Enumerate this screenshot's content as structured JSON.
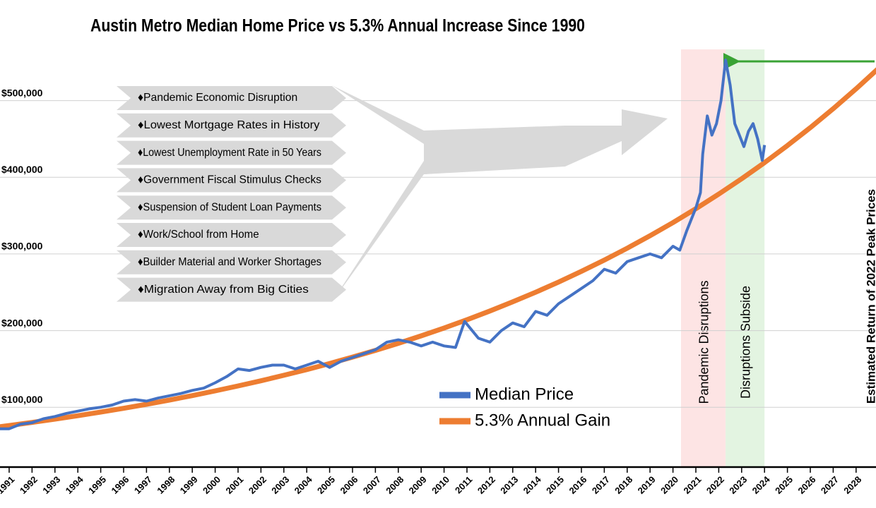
{
  "chart_data": {
    "type": "line",
    "title": "Austin Metro Median Home Price vs 5.3% Annual Increase Since 1990",
    "xlim": [
      1990.6,
      2028.87
    ],
    "xticks": [
      1991,
      1992,
      1993,
      1994,
      1995,
      1996,
      1997,
      1998,
      1999,
      2000,
      2001,
      2002,
      2003,
      2004,
      2005,
      2006,
      2007,
      2008,
      2009,
      2010,
      2011,
      2012,
      2013,
      2014,
      2015,
      2016,
      2017,
      2018,
      2019,
      2020,
      2021,
      2022,
      2023,
      2024,
      2025,
      2026,
      2027,
      2028
    ],
    "ylim": [
      22000,
      576000
    ],
    "yticks": [
      {
        "value": 100000,
        "label": "$100,000"
      },
      {
        "value": 200000,
        "label": "$200,000"
      },
      {
        "value": 300000,
        "label": "$300,000"
      },
      {
        "value": 400000,
        "label": "$400,000"
      },
      {
        "value": 500000,
        "label": "$500,000"
      }
    ],
    "grid": true,
    "series": [
      {
        "name": "Median Price",
        "color": "#4472c4",
        "x": [
          1990.6,
          1991,
          1991.5,
          1992,
          1992.5,
          1993,
          1993.5,
          1994,
          1994.5,
          1995,
          1995.5,
          1996,
          1996.5,
          1997,
          1997.5,
          1998,
          1998.5,
          1999,
          1999.5,
          2000,
          2000.5,
          2001,
          2001.5,
          2002,
          2002.5,
          2003,
          2003.5,
          2004,
          2004.5,
          2005,
          2005.5,
          2006,
          2006.5,
          2007,
          2007.5,
          2008,
          2008.5,
          2009,
          2009.5,
          2010,
          2010.5,
          2010.9,
          2011.5,
          2012,
          2012.5,
          2013,
          2013.5,
          2014,
          2014.5,
          2015,
          2015.5,
          2016,
          2016.5,
          2017,
          2017.5,
          2018,
          2018.5,
          2019,
          2019.5,
          2020,
          2020.3,
          2020.6,
          2021,
          2021.2,
          2021.3,
          2021.5,
          2021.7,
          2021.9,
          2022.1,
          2022.3,
          2022.5,
          2022.7,
          2022.9,
          2023.1,
          2023.3,
          2023.5,
          2023.7,
          2023.9,
          2024
        ],
        "values": [
          72000,
          72000,
          78000,
          80000,
          85000,
          88000,
          92000,
          95000,
          98000,
          100000,
          103000,
          108000,
          110000,
          108000,
          112000,
          115000,
          118000,
          122000,
          125000,
          132000,
          140000,
          150000,
          148000,
          152000,
          155000,
          155000,
          150000,
          155000,
          160000,
          152000,
          160000,
          165000,
          170000,
          175000,
          185000,
          188000,
          185000,
          180000,
          185000,
          180000,
          178000,
          212000,
          190000,
          185000,
          200000,
          210000,
          205000,
          225000,
          220000,
          235000,
          245000,
          255000,
          265000,
          280000,
          275000,
          290000,
          295000,
          300000,
          295000,
          310000,
          305000,
          330000,
          360000,
          380000,
          430000,
          480000,
          455000,
          470000,
          500000,
          553000,
          520000,
          470000,
          455000,
          440000,
          460000,
          470000,
          450000,
          422000,
          442000
        ]
      },
      {
        "name": "5.3% Annual Gain",
        "color": "#ed7d31",
        "x": [
          1990,
          1991,
          1992,
          1993,
          1994,
          1995,
          1996,
          1997,
          1998,
          1999,
          2000,
          2001,
          2002,
          2003,
          2004,
          2005,
          2006,
          2007,
          2008,
          2009,
          2010,
          2011,
          2012,
          2013,
          2014,
          2015,
          2016,
          2017,
          2018,
          2019,
          2020,
          2021,
          2022,
          2023,
          2024,
          2025,
          2026,
          2027,
          2028,
          2029
        ],
        "values": [
          72400,
          76237,
          80277,
          84534,
          89016,
          93736,
          98703,
          103937,
          109447,
          115246,
          121357,
          127786,
          134563,
          141694,
          149202,
          157108,
          165441,
          174209,
          183440,
          193163,
          203401,
          214181,
          225533,
          237486,
          250077,
          263326,
          277285,
          291982,
          307454,
          323756,
          340910,
          358981,
          378008,
          398041,
          419138,
          441350,
          464743,
          489373,
          515312,
          542624
        ]
      }
    ],
    "spans": [
      {
        "label": "Pandemic Disruptions",
        "start": 2020.35,
        "end": 2022.3,
        "color": "#fde4e4"
      },
      {
        "label": "Disruptions Subside",
        "start": 2022.3,
        "end": 2024.0,
        "color": "#e3f4e1"
      }
    ],
    "factors": [
      "♦Pandemic Economic Disruption",
      "♦Lowest Mortgage Rates in History",
      "♦Lowest Unemployment Rate in 50 Years",
      "♦Government Fiscal Stimulus Checks",
      "♦Suspension of Student Loan Payments",
      "♦Work/School from Home",
      "♦Builder Material and Worker Shortages",
      "♦Migration Away from Big Cities"
    ],
    "annotation": "Estimated Return of 2022 Peak Prices"
  }
}
